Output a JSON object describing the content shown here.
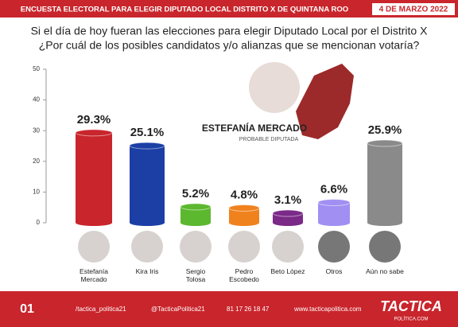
{
  "header": {
    "title": "ENCUESTA ELECTORAL PARA ELEGIR DIPUTADO LOCAL DISTRITO X DE QUINTANA ROO",
    "date": "4 DE MARZO 2022"
  },
  "chart_data": {
    "type": "bar",
    "title": "Si el día de hoy fueran las elecciones para elegir Diputado Local por el Distrito X",
    "subtitle": "¿Por cuál de los posibles candidatos y/o alianzas que se mencionan votaría?",
    "categories": [
      "Estefanía Mercado",
      "Kira Iris",
      "Sergio Tolosa",
      "Pedro Escobedo",
      "Beto López",
      "Otros",
      "Aún no sabe"
    ],
    "values": [
      29.3,
      25.1,
      5.2,
      4.8,
      3.1,
      6.6,
      25.9
    ],
    "value_labels": [
      "29.3%",
      "25.1%",
      "5.2%",
      "4.8%",
      "3.1%",
      "6.6%",
      "25.9%"
    ],
    "colors": [
      "#c9252c",
      "#1c3fa6",
      "#5cb82e",
      "#f0821e",
      "#7b2a88",
      "#a18ff2",
      "#8a8a8a"
    ],
    "ylim": [
      0,
      50
    ],
    "yticks": [
      0,
      10,
      20,
      30,
      40,
      50
    ],
    "grid": false
  },
  "feature": {
    "name": "ESTEFANÍA MERCADO",
    "role": "PROBABLE DIPUTADA"
  },
  "footer": {
    "page": "01",
    "facebook": "/tactica_politica21",
    "twitter": "@TacticaPolitica21",
    "phone": "81 17 26 18 47",
    "web": "www.tacticapolitica.com",
    "brand": "TACTICA",
    "brand_sub": "POLÍTICA.COM"
  }
}
